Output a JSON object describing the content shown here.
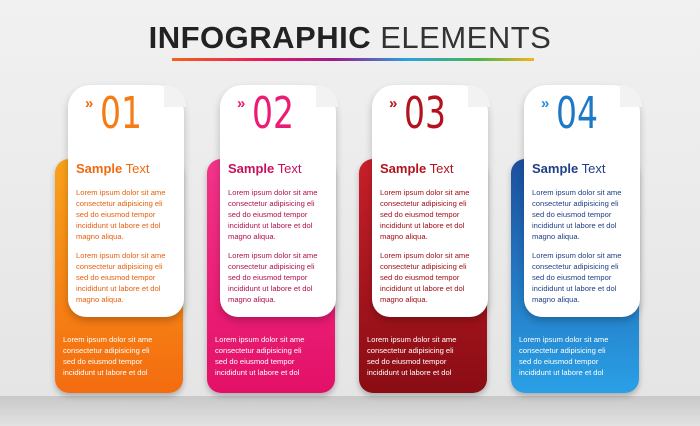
{
  "title": {
    "bold": "INFOGRAPHIC",
    "light": "ELEMENTS"
  },
  "colors": {
    "c1": "#f57c14",
    "c2": "#ec1c74",
    "c3": "#b3131e",
    "c4": "#1e78c8"
  },
  "cards": [
    {
      "chevron": "»",
      "number": "01",
      "heading_bold": "Sample",
      "heading_rest": "Text",
      "para1": "Lorem ipsum dolor sit ame\nconsectetur adipisicing eli\nsed do eiusmod tempor\nincididunt ut labore et dol\nmagno aliqua.",
      "para2": "Lorem ipsum dolor sit ame\nconsectetur adipisicing eli\nsed do eiusmod tempor\nincididunt ut labore et dol\nmagno aliqua.",
      "bottom": "Lorem ipsum dolor sit ame\nconsectetur adipisicing eli\nsed do eiusmod tempor\nincididunt ut labore et dol"
    },
    {
      "chevron": "»",
      "number": "02",
      "heading_bold": "Sample",
      "heading_rest": "Text",
      "para1": "Lorem ipsum dolor sit ame\nconsectetur adipisicing eli\nsed do eiusmod tempor\nincididunt ut labore et dol\nmagno aliqua.",
      "para2": "Lorem ipsum dolor sit ame\nconsectetur adipisicing eli\nsed do eiusmod tempor\nincididunt ut labore et dol\nmagno aliqua.",
      "bottom": "Lorem ipsum dolor sit ame\nconsectetur adipisicing eli\nsed do eiusmod tempor\nincididunt ut labore et dol"
    },
    {
      "chevron": "»",
      "number": "03",
      "heading_bold": "Sample",
      "heading_rest": "Text",
      "para1": "Lorem ipsum dolor sit ame\nconsectetur adipisicing eli\nsed do eiusmod tempor\nincididunt ut labore et dol\nmagno aliqua.",
      "para2": "Lorem ipsum dolor sit ame\nconsectetur adipisicing eli\nsed do eiusmod tempor\nincididunt ut labore et dol\nmagno aliqua.",
      "bottom": "Lorem ipsum dolor sit ame\nconsectetur adipisicing eli\nsed do eiusmod tempor\nincididunt ut labore et dol"
    },
    {
      "chevron": "»",
      "number": "04",
      "heading_bold": "Sample",
      "heading_rest": "Text",
      "para1": "Lorem ipsum dolor sit ame\nconsectetur adipisicing eli\nsed do eiusmod tempor\nincididunt ut labore et dol\nmagno aliqua.",
      "para2": "Lorem ipsum dolor sit ame\nconsectetur adipisicing eli\nsed do eiusmod tempor\nincididunt ut labore et dol\nmagno aliqua.",
      "bottom": "Lorem ipsum dolor sit ame\nconsectetur adipisicing eli\nsed do eiusmod tempor\nincididunt ut labore et dol"
    }
  ]
}
